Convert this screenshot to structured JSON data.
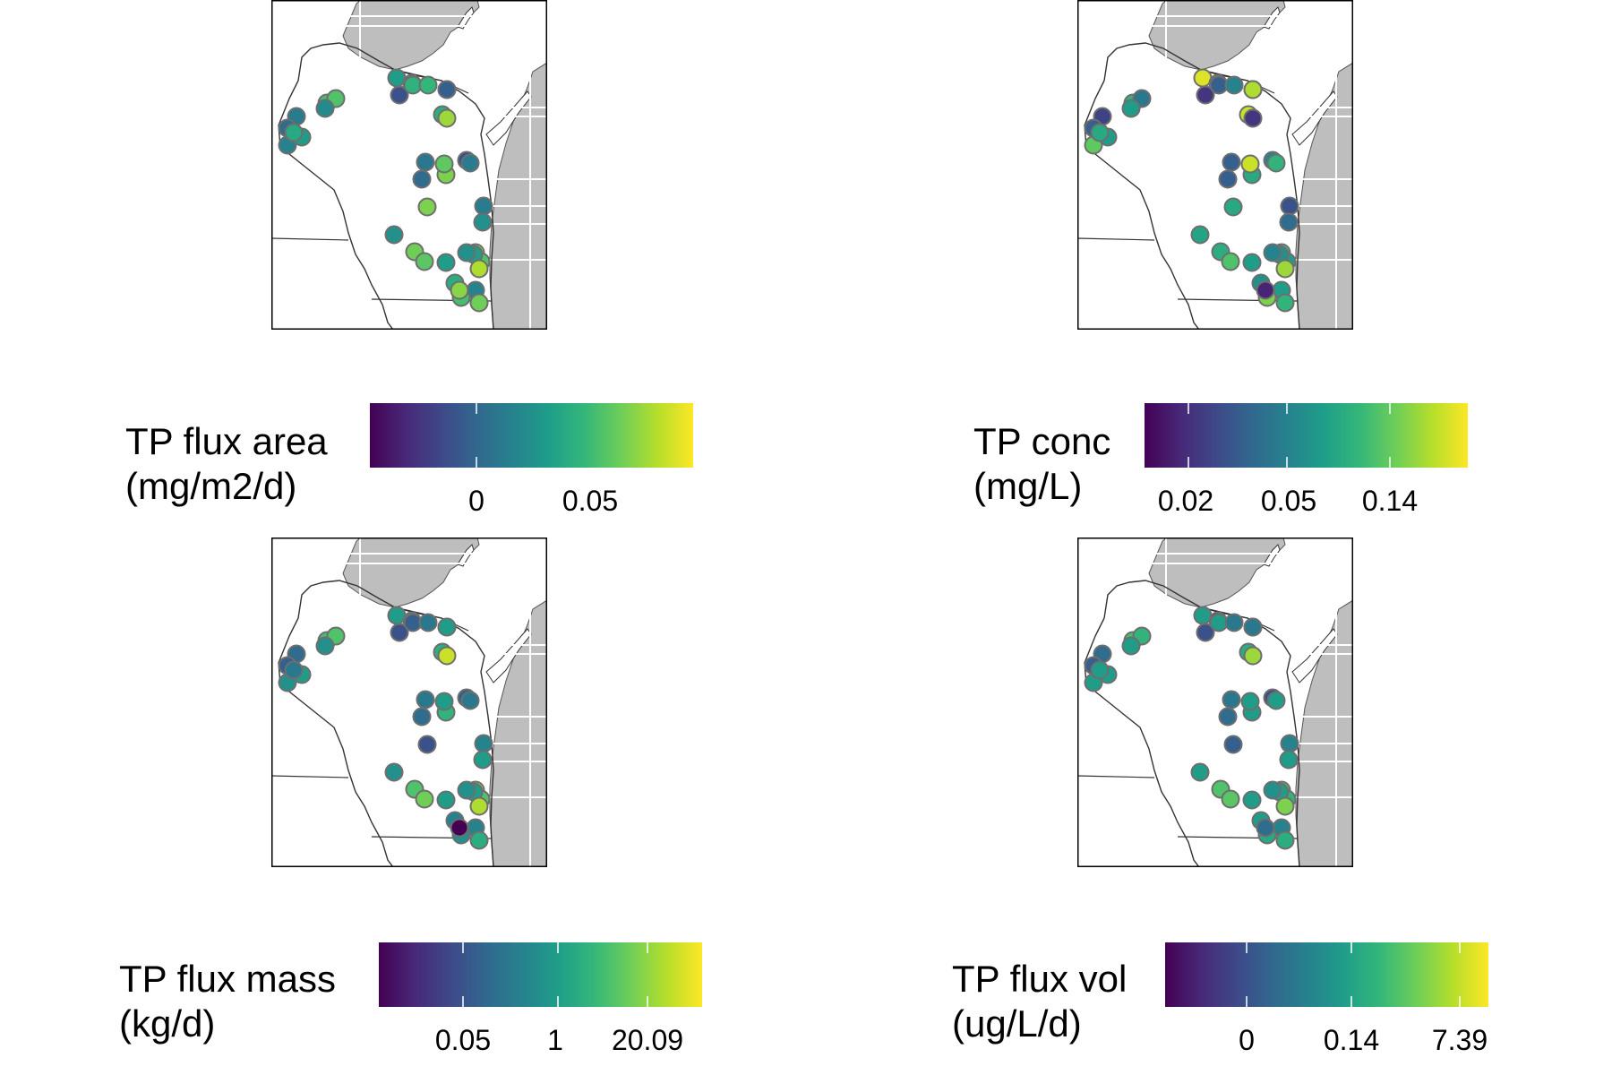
{
  "figure": {
    "panels": [
      {
        "id": "flux-area",
        "legend": {
          "title_line1": "TP flux area",
          "title_line2": "(mg/m2/d)",
          "ticks": [
            "0",
            "0.05"
          ]
        },
        "palette": "viridis",
        "stations": [
          0.55,
          0.45,
          0.25,
          0.3,
          0.62,
          0.64,
          0.66,
          0.3,
          0.85,
          0.42,
          0.35,
          0.45,
          0.7,
          0.72,
          0.48,
          0.4,
          0.8,
          0.75,
          0.35,
          0.25,
          0.42,
          0.8,
          0.42,
          0.5,
          0.5,
          0.78,
          0.74,
          0.55,
          0.8,
          0.72,
          0.55,
          0.5,
          0.88,
          0.62,
          0.45,
          0.78,
          0.7,
          0.55,
          0.6,
          0.82
        ]
      },
      {
        "id": "conc",
        "legend": {
          "title_line1": "TP conc",
          "title_line2": "(mg/L)",
          "ticks": [
            "0.02",
            "0.05",
            "0.14"
          ]
        },
        "palette": "viridis",
        "stations": [
          0.95,
          0.55,
          0.15,
          0.55,
          0.92,
          0.3,
          0.45,
          0.88,
          0.15,
          0.2,
          0.3,
          0.75,
          0.65,
          0.4,
          0.55,
          0.3,
          0.6,
          0.92,
          0.3,
          0.45,
          0.65,
          0.6,
          0.25,
          0.35,
          0.58,
          0.62,
          0.72,
          0.55,
          0.72,
          0.55,
          0.5,
          0.45,
          0.85,
          0.5,
          0.55,
          0.65,
          0.8,
          0.55,
          0.6,
          0.1
        ]
      },
      {
        "id": "flux-mass",
        "legend": {
          "title_line1": "TP flux mass",
          "title_line2": "(kg/d)",
          "ticks": [
            "0.05",
            "1",
            "20.09"
          ]
        },
        "palette": "viridis",
        "stations": [
          0.55,
          0.55,
          0.25,
          0.3,
          0.62,
          0.3,
          0.4,
          0.55,
          0.92,
          0.35,
          0.3,
          0.5,
          0.7,
          0.72,
          0.5,
          0.4,
          0.65,
          0.55,
          0.35,
          0.3,
          0.4,
          0.25,
          0.45,
          0.55,
          0.5,
          0.72,
          0.78,
          0.55,
          0.8,
          0.72,
          0.55,
          0.5,
          0.88,
          0.45,
          0.45,
          0.62,
          0.5,
          0.55,
          0.4,
          0.0
        ]
      },
      {
        "id": "flux-vol",
        "legend": {
          "title_line1": "TP flux vol",
          "title_line2": "(ug/L/d)",
          "ticks": [
            "0",
            "0.14",
            "7.39"
          ]
        },
        "palette": "viridis",
        "stations": [
          0.55,
          0.05,
          0.25,
          0.55,
          0.62,
          0.55,
          0.4,
          0.4,
          0.85,
          0.35,
          0.3,
          0.55,
          0.7,
          0.65,
          0.55,
          0.4,
          0.55,
          0.55,
          0.35,
          0.25,
          0.55,
          0.3,
          0.45,
          0.55,
          0.55,
          0.72,
          0.74,
          0.55,
          0.75,
          0.65,
          0.55,
          0.5,
          0.8,
          0.55,
          0.45,
          0.62,
          0.6,
          0.55,
          0.55,
          0.35
        ]
      }
    ]
  }
}
